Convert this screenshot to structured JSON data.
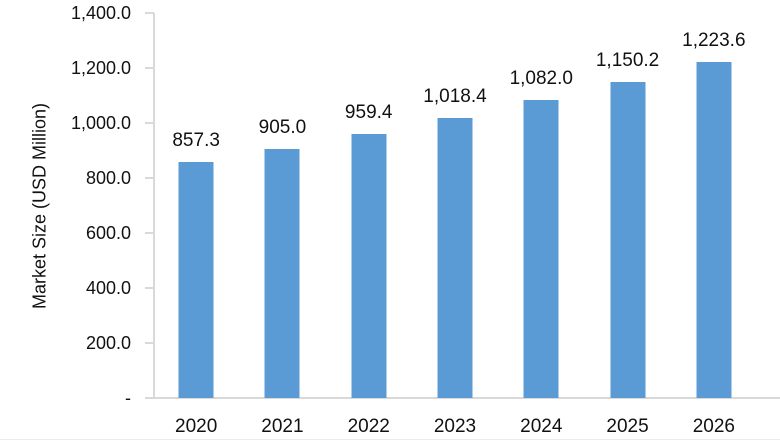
{
  "chart_data": {
    "type": "bar",
    "title": "",
    "ylabel": "Market Size (USD Million)",
    "xlabel": "",
    "categories": [
      "2020",
      "2021",
      "2022",
      "2023",
      "2024",
      "2025",
      "2026"
    ],
    "values": [
      857.3,
      905.0,
      959.4,
      1018.4,
      1082.0,
      1150.2,
      1223.6
    ],
    "value_labels": [
      "857.3",
      "905.0",
      "959.4",
      "1,018.4",
      "1,082.0",
      "1,150.2",
      "1,223.6"
    ],
    "ylim": [
      0,
      1400
    ],
    "ytick_values": [
      0,
      200,
      400,
      600,
      800,
      1000,
      1200,
      1400
    ],
    "ytick_labels": [
      "-",
      "200.0",
      "400.0",
      "600.0",
      "800.0",
      "1,000.0",
      "1,200.0",
      "1,400.0"
    ],
    "grid": false,
    "legend": false,
    "colors": {
      "bar": "#5B9BD5",
      "axis": "#D9D9D9",
      "text": "#111111"
    }
  }
}
